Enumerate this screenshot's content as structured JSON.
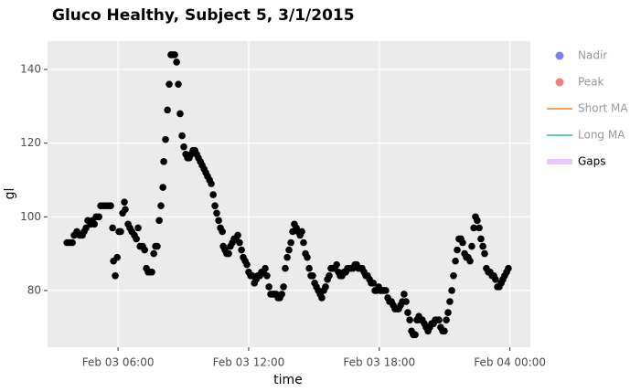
{
  "chart_data": {
    "type": "scatter",
    "title": "Gluco Healthy, Subject 5, 3/1/2015",
    "x_label": "time",
    "y_label": "gl",
    "color": "#000000",
    "grid": true,
    "xlim": [
      2.76,
      24.94
    ],
    "ylim": [
      64.6,
      147.7
    ],
    "xticks": [
      {
        "value": 6,
        "label": "Feb 03 06:00"
      },
      {
        "value": 12,
        "label": "Feb 03 12:00"
      },
      {
        "value": 18,
        "label": "Feb 03 18:00"
      },
      {
        "value": 24,
        "label": "Feb 04 00:00"
      }
    ],
    "yticks": [
      80,
      100,
      120,
      140
    ],
    "x": [
      3.65,
      3.77,
      3.9,
      3.98,
      4.11,
      4.23,
      4.36,
      4.44,
      4.53,
      4.61,
      4.74,
      4.82,
      4.91,
      4.99,
      5.12,
      5.2,
      5.33,
      5.45,
      5.58,
      5.66,
      5.75,
      5.79,
      5.87,
      5.96,
      6.04,
      6.12,
      6.21,
      6.29,
      6.33,
      6.46,
      6.54,
      6.63,
      6.75,
      6.84,
      6.92,
      7.01,
      7.13,
      7.22,
      7.3,
      7.38,
      7.47,
      7.55,
      7.64,
      7.72,
      7.8,
      7.89,
      7.97,
      8.06,
      8.1,
      8.18,
      8.27,
      8.35,
      8.43,
      8.52,
      8.6,
      8.69,
      8.77,
      8.85,
      8.94,
      9.02,
      9.11,
      9.19,
      9.27,
      9.36,
      9.44,
      9.53,
      9.61,
      9.69,
      9.78,
      9.86,
      9.95,
      10.03,
      10.11,
      10.2,
      10.28,
      10.37,
      10.45,
      10.53,
      10.62,
      10.7,
      10.79,
      10.83,
      10.91,
      10.99,
      11.08,
      11.16,
      11.25,
      11.33,
      11.42,
      11.5,
      11.58,
      11.67,
      11.75,
      11.84,
      11.92,
      12.0,
      12.09,
      12.17,
      12.26,
      12.34,
      12.42,
      12.51,
      12.59,
      12.68,
      12.76,
      12.84,
      12.93,
      13.01,
      13.1,
      13.18,
      13.26,
      13.35,
      13.43,
      13.52,
      13.6,
      13.68,
      13.77,
      13.85,
      13.94,
      14.02,
      14.1,
      14.19,
      14.27,
      14.36,
      14.44,
      14.52,
      14.61,
      14.69,
      14.78,
      14.86,
      14.94,
      15.03,
      15.11,
      15.2,
      15.28,
      15.36,
      15.45,
      15.53,
      15.62,
      15.7,
      15.78,
      15.87,
      15.95,
      16.04,
      16.12,
      16.2,
      16.29,
      16.37,
      16.46,
      16.54,
      16.62,
      16.71,
      16.79,
      16.88,
      16.96,
      17.04,
      17.13,
      17.21,
      17.3,
      17.38,
      17.46,
      17.55,
      17.63,
      17.72,
      17.8,
      17.88,
      17.97,
      18.05,
      18.14,
      18.22,
      18.3,
      18.39,
      18.47,
      18.56,
      18.64,
      18.72,
      18.81,
      18.89,
      18.98,
      19.06,
      19.14,
      19.23,
      19.31,
      19.4,
      19.48,
      19.56,
      19.65,
      19.73,
      19.82,
      19.9,
      19.98,
      20.07,
      20.15,
      20.24,
      20.32,
      20.4,
      20.49,
      20.57,
      20.66,
      20.74,
      20.82,
      20.91,
      20.99,
      21.08,
      21.16,
      21.24,
      21.33,
      21.41,
      21.5,
      21.58,
      21.66,
      21.75,
      21.83,
      21.92,
      22.0,
      22.08,
      22.17,
      22.25,
      22.34,
      22.42,
      22.5,
      22.59,
      22.67,
      22.76,
      22.84,
      22.92,
      23.01,
      23.09,
      23.18,
      23.26,
      23.34,
      23.43,
      23.51,
      23.6,
      23.68,
      23.76,
      23.85,
      23.93
    ],
    "values": [
      93,
      93,
      93,
      95,
      96,
      95,
      95,
      96,
      97,
      99,
      98,
      99,
      98,
      100,
      100,
      103,
      103,
      103,
      103,
      103,
      97,
      88,
      84,
      89,
      96,
      96,
      101,
      104,
      102,
      98,
      97,
      96,
      95,
      94,
      97,
      92,
      92,
      91,
      86,
      85,
      85,
      85,
      90,
      92,
      92,
      99,
      103,
      108,
      115,
      121,
      129,
      136,
      144,
      144,
      144,
      142,
      136,
      128,
      122,
      119,
      117,
      116,
      116,
      117,
      118,
      118,
      117,
      116,
      115,
      114,
      113,
      112,
      111,
      110,
      109,
      106,
      103,
      101,
      99,
      97,
      96,
      92,
      91,
      90,
      90,
      92,
      93,
      94,
      94,
      95,
      93,
      91,
      89,
      88,
      87,
      85,
      84,
      84,
      82,
      83,
      84,
      84,
      85,
      85,
      86,
      84,
      81,
      79,
      79,
      79,
      79,
      78,
      78,
      79,
      81,
      86,
      89,
      91,
      93,
      96,
      98,
      97,
      96,
      95,
      96,
      93,
      90,
      89,
      86,
      84,
      84,
      82,
      81,
      80,
      79,
      78,
      80,
      81,
      83,
      84,
      86,
      86,
      86,
      87,
      85,
      84,
      84,
      85,
      85,
      86,
      86,
      86,
      86,
      87,
      87,
      86,
      86,
      86,
      85,
      84,
      84,
      83,
      82,
      82,
      80,
      80,
      81,
      80,
      80,
      80,
      80,
      78,
      77,
      77,
      76,
      75,
      75,
      75,
      76,
      77,
      79,
      77,
      74,
      72,
      69,
      68,
      68,
      72,
      73,
      72,
      72,
      71,
      70,
      69,
      70,
      71,
      71,
      72,
      72,
      72,
      70,
      69,
      69,
      72,
      74,
      77,
      80,
      84,
      88,
      91,
      94,
      94,
      93,
      90,
      89,
      89,
      88,
      92,
      97,
      100,
      99,
      97,
      94,
      92,
      90,
      86,
      85,
      85,
      84,
      84,
      83,
      81,
      81,
      82,
      83,
      84,
      85,
      86
    ],
    "legend": [
      {
        "name": "Nadir",
        "color": "#7f7fef",
        "symbol": "circle",
        "hidden": true
      },
      {
        "name": "Peak",
        "color": "#f08080",
        "symbol": "circle",
        "hidden": true
      },
      {
        "name": "Short MA",
        "color": "#f4a460",
        "symbol": "line",
        "hidden": true
      },
      {
        "name": "Long MA",
        "color": "#66cdaa",
        "symbol": "line",
        "hidden": true
      },
      {
        "name": "Gaps",
        "color": "#e6c8fa",
        "symbol": "band",
        "hidden": false
      }
    ]
  }
}
